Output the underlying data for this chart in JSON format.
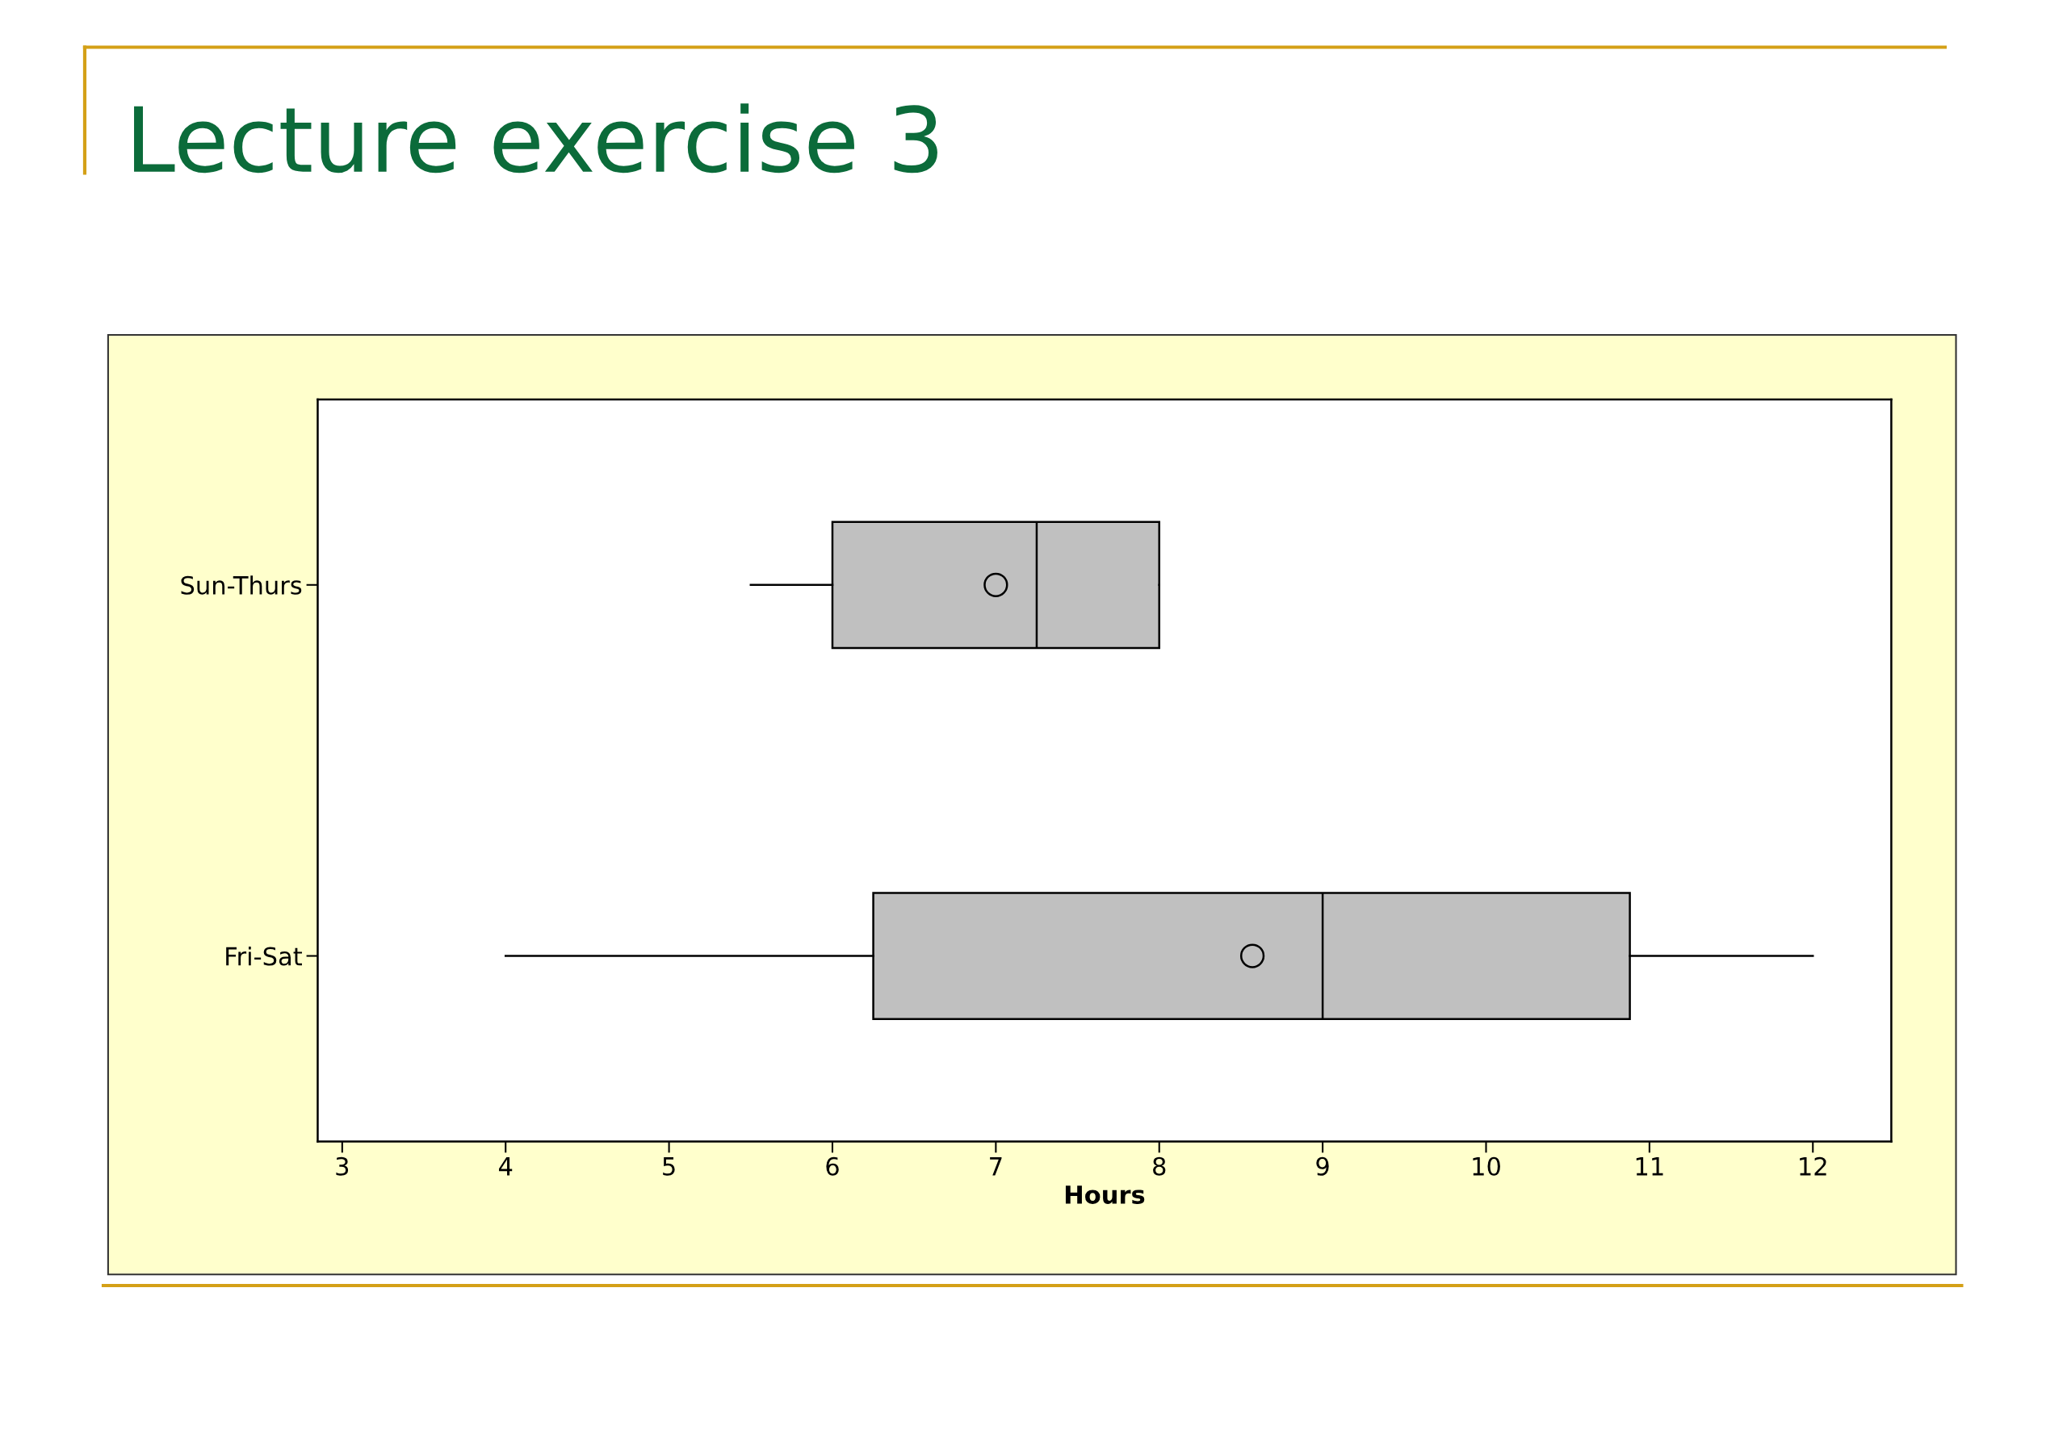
{
  "chart_data": {
    "type": "box",
    "title": "Lecture exercise 3",
    "xlabel": "Hours",
    "orientation": "horizontal",
    "categories": [
      "Sun-Thurs",
      "Fri-Sat"
    ],
    "boxes": [
      {
        "low": 5.5,
        "q1": 6.0,
        "median": 7.25,
        "q3": 8.0,
        "high": 8.0,
        "mean": 7.0
      },
      {
        "low": 4.0,
        "q1": 6.25,
        "median": 9.0,
        "q3": 10.88,
        "high": 12.0,
        "mean": 8.57
      }
    ],
    "color": "#c0c0c0",
    "xlim": [
      2.85,
      12.48
    ],
    "xticks": [
      3,
      4,
      5,
      6,
      7,
      8,
      9,
      10,
      11,
      12
    ],
    "grid": false
  }
}
